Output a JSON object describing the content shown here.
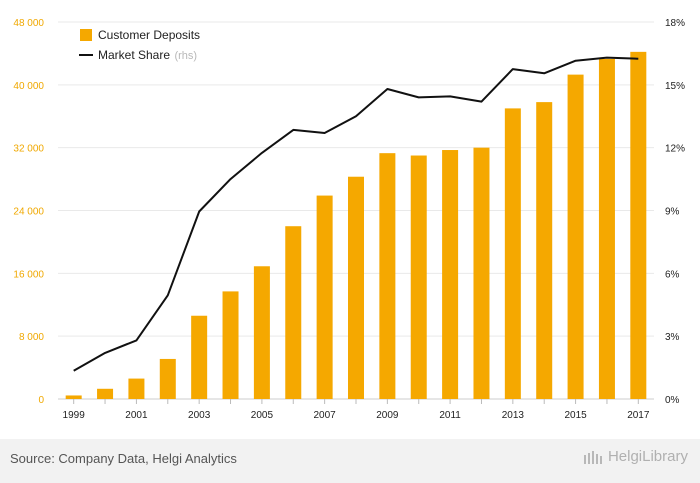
{
  "chart_data": {
    "type": "bar+line",
    "categories": [
      "1999",
      "2000",
      "2001",
      "2002",
      "2003",
      "2004",
      "2005",
      "2006",
      "2007",
      "2008",
      "2009",
      "2010",
      "2011",
      "2012",
      "2013",
      "2014",
      "2015",
      "2016",
      "2017"
    ],
    "x_tick_labels": [
      "1999",
      "2001",
      "2003",
      "2005",
      "2007",
      "2009",
      "2011",
      "2013",
      "2015",
      "2017"
    ],
    "series": [
      {
        "name": "Customer Deposits",
        "kind": "bar",
        "axis": "left",
        "color": "#f5a800",
        "values": [
          450,
          1300,
          2600,
          5100,
          10600,
          13700,
          16900,
          22000,
          25900,
          28300,
          31300,
          31000,
          31700,
          32000,
          37000,
          37800,
          41300,
          43300,
          44200
        ]
      },
      {
        "name": "Market Share",
        "kind": "line",
        "axis": "right",
        "color": "#111111",
        "values": [
          1.35,
          2.2,
          2.8,
          4.95,
          8.95,
          10.5,
          11.75,
          12.85,
          12.7,
          13.5,
          14.8,
          14.4,
          14.45,
          14.2,
          15.75,
          15.55,
          16.15,
          16.3,
          16.25
        ]
      }
    ],
    "left_axis": {
      "ylim": [
        0,
        48000
      ],
      "ticks": [
        "0",
        "8 000",
        "16 000",
        "24 000",
        "32 000",
        "40 000",
        "48 000"
      ]
    },
    "right_axis": {
      "ylim": [
        0,
        18
      ],
      "ticks": [
        "0%",
        "3%",
        "6%",
        "9%",
        "12%",
        "15%",
        "18%"
      ]
    },
    "legend": [
      {
        "label": "Customer Deposits",
        "suffix": ""
      },
      {
        "label": "Market Share",
        "suffix": "(rhs)"
      }
    ]
  },
  "footer": {
    "source": "Source: Company Data, Helgi Analytics",
    "brand": "HelgiLibrary"
  }
}
